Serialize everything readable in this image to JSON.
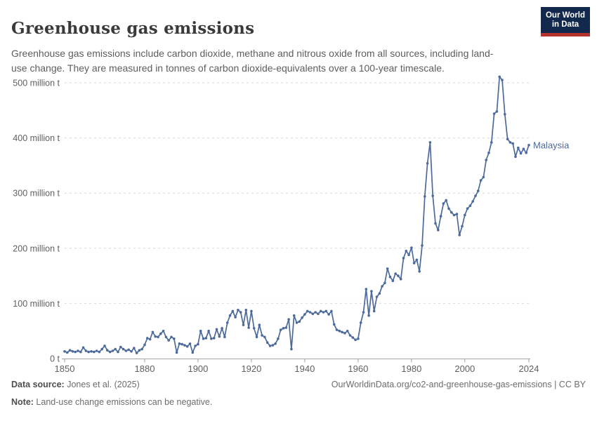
{
  "header": {
    "title": "Greenhouse gas emissions",
    "subtitle": "Greenhouse gas emissions include carbon dioxide, methane and nitrous oxide from all sources, including land-use change. They are measured in tonnes of carbon dioxide-equivalents over a 100-year timescale.",
    "logo": {
      "line1": "Our World",
      "line2": "in Data"
    }
  },
  "colors": {
    "line": "#4c6a9c",
    "grid": "#d9d9d9",
    "axis": "#a1a1a1",
    "tick_text": "#606060",
    "logo_bg": "#12294d",
    "logo_accent": "#b5332c"
  },
  "chart_data": {
    "type": "line",
    "title": "Greenhouse gas emissions",
    "xlabel": "",
    "ylabel": "",
    "y_unit": "tonnes of CO2-equivalents",
    "ylim": [
      0,
      520
    ],
    "grid": "horizontal dashed",
    "legend_position": "end-of-line label",
    "x_ticks": [
      1850,
      1880,
      1900,
      1920,
      1940,
      1960,
      1980,
      2000,
      2024
    ],
    "y_ticks": [
      {
        "value": 0,
        "label": "0 t"
      },
      {
        "value": 100,
        "label": "100 million t"
      },
      {
        "value": 200,
        "label": "200 million t"
      },
      {
        "value": 300,
        "label": "300 million t"
      },
      {
        "value": 400,
        "label": "400 million t"
      },
      {
        "value": 500,
        "label": "500 million t"
      }
    ],
    "series": [
      {
        "name": "Malaysia",
        "unit": "million t",
        "points": [
          [
            1850,
            13
          ],
          [
            1851,
            11
          ],
          [
            1852,
            15
          ],
          [
            1853,
            13
          ],
          [
            1854,
            12
          ],
          [
            1855,
            14
          ],
          [
            1856,
            12
          ],
          [
            1857,
            20
          ],
          [
            1858,
            14
          ],
          [
            1859,
            12
          ],
          [
            1860,
            13
          ],
          [
            1861,
            12
          ],
          [
            1862,
            14
          ],
          [
            1863,
            12
          ],
          [
            1864,
            17
          ],
          [
            1865,
            23
          ],
          [
            1866,
            15
          ],
          [
            1867,
            12
          ],
          [
            1868,
            14
          ],
          [
            1869,
            17
          ],
          [
            1870,
            12
          ],
          [
            1871,
            21
          ],
          [
            1872,
            17
          ],
          [
            1873,
            14
          ],
          [
            1874,
            16
          ],
          [
            1875,
            13
          ],
          [
            1876,
            19
          ],
          [
            1877,
            10
          ],
          [
            1878,
            15
          ],
          [
            1879,
            17
          ],
          [
            1880,
            25
          ],
          [
            1881,
            37
          ],
          [
            1882,
            35
          ],
          [
            1883,
            48
          ],
          [
            1884,
            40
          ],
          [
            1885,
            39
          ],
          [
            1886,
            45
          ],
          [
            1887,
            50
          ],
          [
            1888,
            39
          ],
          [
            1889,
            33
          ],
          [
            1890,
            39
          ],
          [
            1891,
            36
          ],
          [
            1892,
            11
          ],
          [
            1893,
            27
          ],
          [
            1894,
            26
          ],
          [
            1895,
            24
          ],
          [
            1896,
            22
          ],
          [
            1897,
            27
          ],
          [
            1898,
            11
          ],
          [
            1899,
            23
          ],
          [
            1900,
            26
          ],
          [
            1901,
            50
          ],
          [
            1902,
            36
          ],
          [
            1903,
            37
          ],
          [
            1904,
            50
          ],
          [
            1905,
            36
          ],
          [
            1906,
            37
          ],
          [
            1907,
            53
          ],
          [
            1908,
            40
          ],
          [
            1909,
            55
          ],
          [
            1910,
            39
          ],
          [
            1911,
            65
          ],
          [
            1912,
            78
          ],
          [
            1913,
            86
          ],
          [
            1914,
            75
          ],
          [
            1915,
            88
          ],
          [
            1916,
            84
          ],
          [
            1917,
            61
          ],
          [
            1918,
            88
          ],
          [
            1919,
            56
          ],
          [
            1920,
            86
          ],
          [
            1921,
            55
          ],
          [
            1922,
            39
          ],
          [
            1923,
            61
          ],
          [
            1924,
            42
          ],
          [
            1925,
            39
          ],
          [
            1926,
            29
          ],
          [
            1927,
            23
          ],
          [
            1928,
            24
          ],
          [
            1929,
            27
          ],
          [
            1930,
            36
          ],
          [
            1931,
            52
          ],
          [
            1932,
            55
          ],
          [
            1933,
            56
          ],
          [
            1934,
            71
          ],
          [
            1935,
            17
          ],
          [
            1936,
            78
          ],
          [
            1937,
            65
          ],
          [
            1938,
            67
          ],
          [
            1939,
            74
          ],
          [
            1940,
            80
          ],
          [
            1941,
            86
          ],
          [
            1942,
            84
          ],
          [
            1943,
            81
          ],
          [
            1944,
            84
          ],
          [
            1945,
            81
          ],
          [
            1946,
            86
          ],
          [
            1947,
            84
          ],
          [
            1948,
            86
          ],
          [
            1949,
            80
          ],
          [
            1950,
            86
          ],
          [
            1951,
            62
          ],
          [
            1952,
            52
          ],
          [
            1953,
            50
          ],
          [
            1954,
            48
          ],
          [
            1955,
            46
          ],
          [
            1956,
            50
          ],
          [
            1957,
            42
          ],
          [
            1958,
            38
          ],
          [
            1959,
            34
          ],
          [
            1960,
            36
          ],
          [
            1961,
            65
          ],
          [
            1962,
            84
          ],
          [
            1963,
            126
          ],
          [
            1964,
            78
          ],
          [
            1965,
            122
          ],
          [
            1966,
            86
          ],
          [
            1967,
            112
          ],
          [
            1968,
            118
          ],
          [
            1969,
            131
          ],
          [
            1970,
            137
          ],
          [
            1971,
            163
          ],
          [
            1972,
            148
          ],
          [
            1973,
            141
          ],
          [
            1974,
            154
          ],
          [
            1975,
            150
          ],
          [
            1976,
            144
          ],
          [
            1977,
            182
          ],
          [
            1978,
            195
          ],
          [
            1979,
            188
          ],
          [
            1980,
            201
          ],
          [
            1981,
            173
          ],
          [
            1982,
            179
          ],
          [
            1983,
            158
          ],
          [
            1984,
            205
          ],
          [
            1985,
            294
          ],
          [
            1986,
            354
          ],
          [
            1987,
            392
          ],
          [
            1988,
            295
          ],
          [
            1989,
            245
          ],
          [
            1990,
            233
          ],
          [
            1991,
            258
          ],
          [
            1992,
            281
          ],
          [
            1993,
            287
          ],
          [
            1994,
            272
          ],
          [
            1995,
            265
          ],
          [
            1996,
            260
          ],
          [
            1997,
            262
          ],
          [
            1998,
            224
          ],
          [
            1999,
            240
          ],
          [
            2000,
            260
          ],
          [
            2001,
            272
          ],
          [
            2002,
            277
          ],
          [
            2003,
            285
          ],
          [
            2004,
            295
          ],
          [
            2005,
            304
          ],
          [
            2006,
            323
          ],
          [
            2007,
            329
          ],
          [
            2008,
            360
          ],
          [
            2009,
            373
          ],
          [
            2010,
            392
          ],
          [
            2011,
            444
          ],
          [
            2012,
            448
          ],
          [
            2013,
            511
          ],
          [
            2014,
            505
          ],
          [
            2015,
            443
          ],
          [
            2016,
            398
          ],
          [
            2017,
            392
          ],
          [
            2018,
            390
          ],
          [
            2019,
            366
          ],
          [
            2020,
            382
          ],
          [
            2021,
            372
          ],
          [
            2022,
            380
          ],
          [
            2023,
            373
          ],
          [
            2024,
            387
          ]
        ]
      }
    ]
  },
  "footer": {
    "source_label": "Data source:",
    "source_value": " Jones et al. (2025)",
    "note_label": "Note:",
    "note_value": " Land-use change emissions can be negative.",
    "url": "OurWorldinData.org/co2-and-greenhouse-gas-emissions | CC BY"
  }
}
